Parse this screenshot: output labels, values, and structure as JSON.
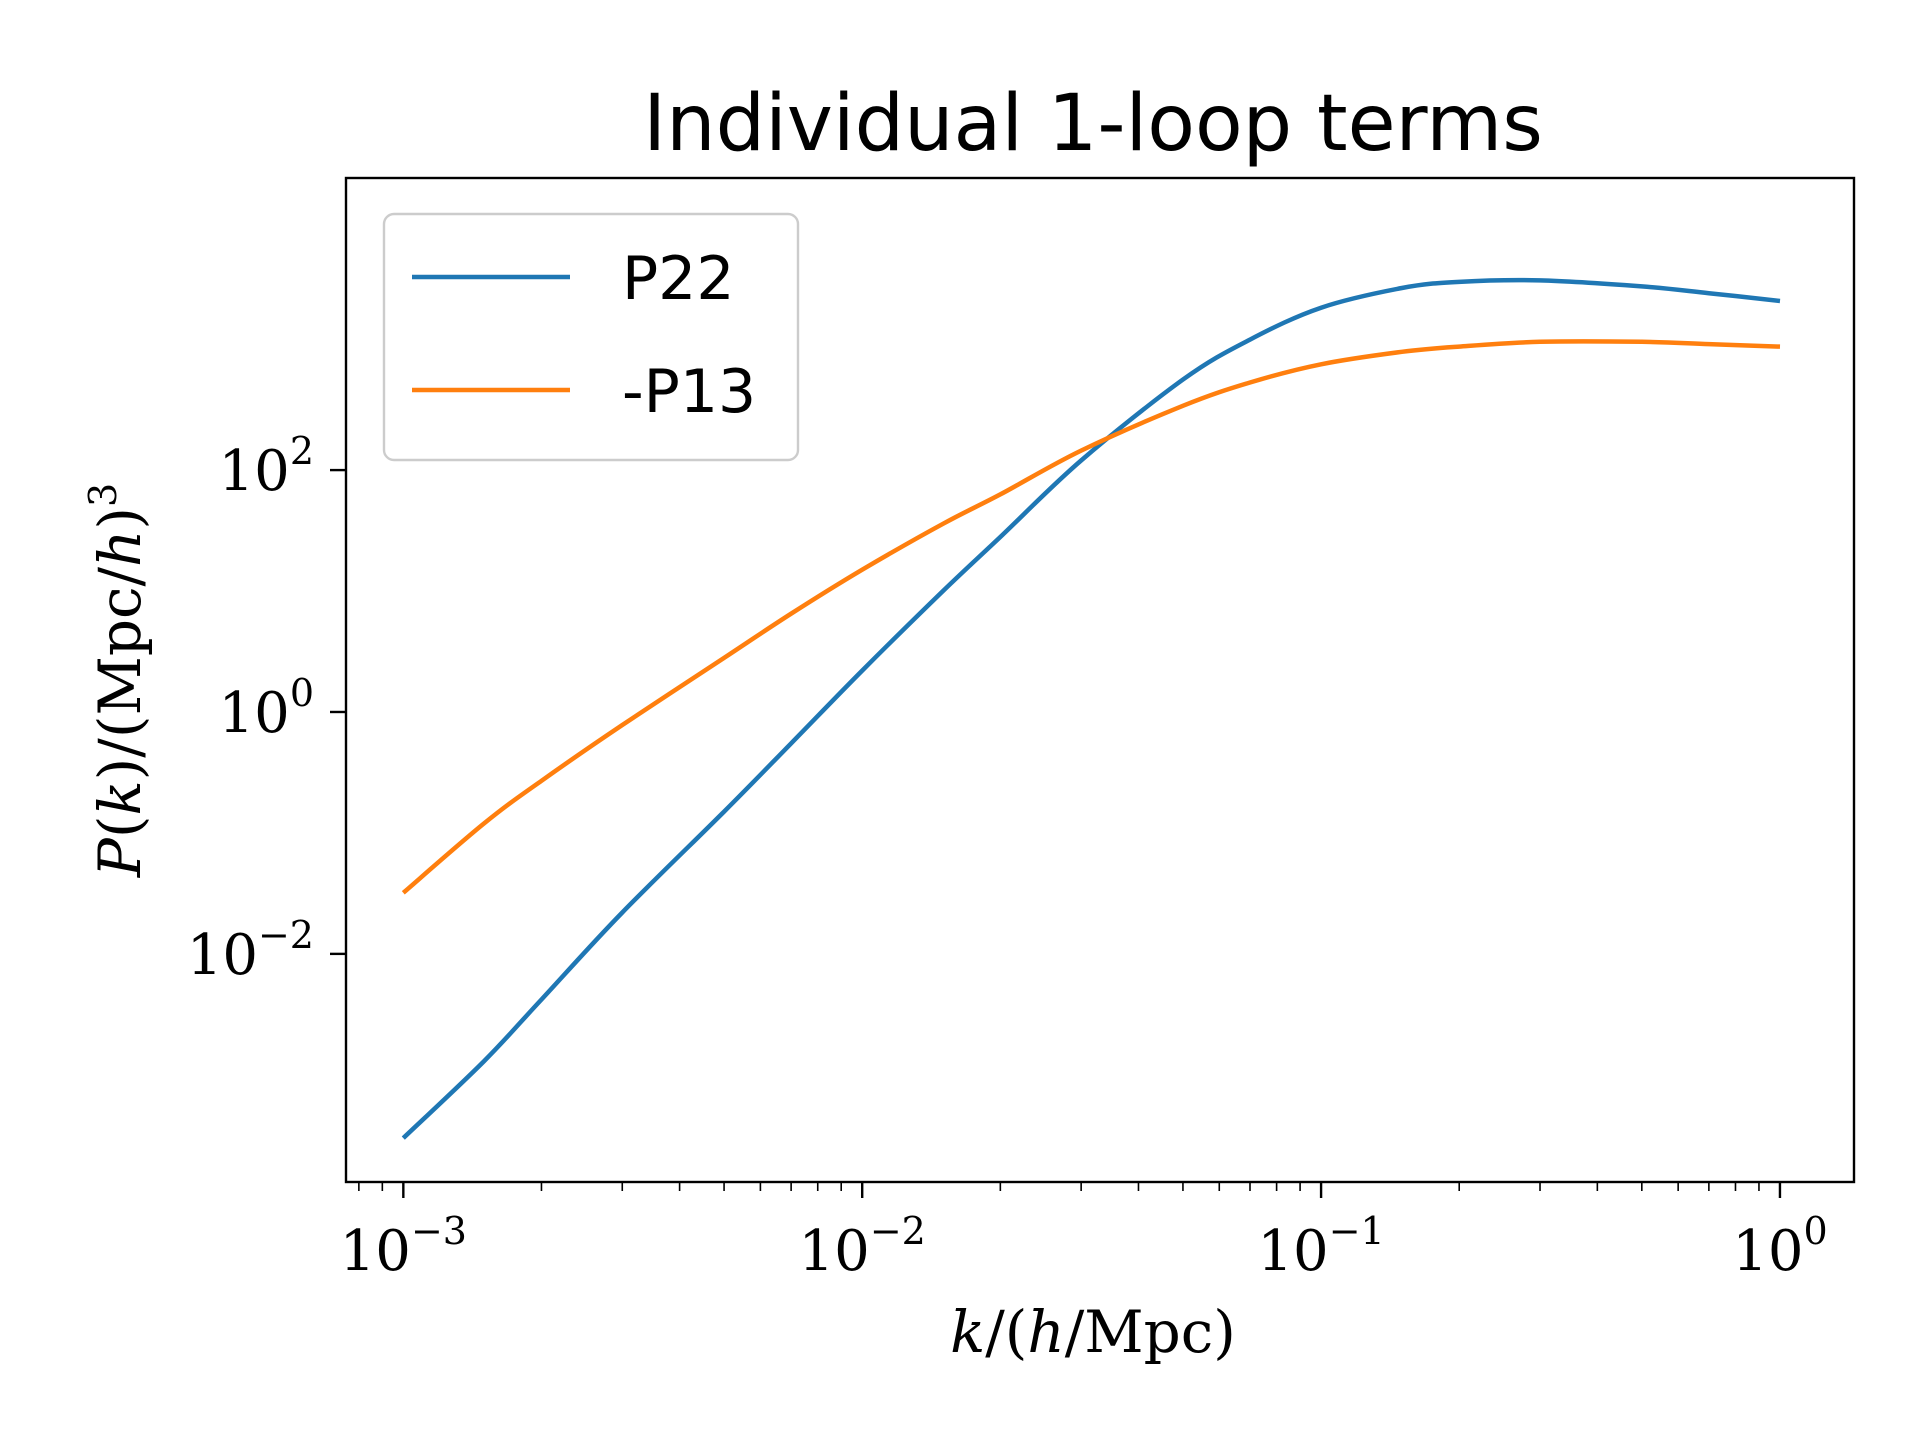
{
  "chart_data": {
    "type": "line",
    "title": "Individual 1-loop terms",
    "xlabel": "k/(h/Mpc)",
    "ylabel": "P(k)/(Mpc/h)^3",
    "xscale": "log",
    "yscale": "log",
    "xlim": [
      0.00075,
      1.45
    ],
    "ylim": [
      0.00013,
      26000
    ],
    "grid": false,
    "legend_position": "upper left",
    "x_ticks": [
      {
        "value": 0.001,
        "base": "10",
        "exp": "−3"
      },
      {
        "value": 0.01,
        "base": "10",
        "exp": "−2"
      },
      {
        "value": 0.1,
        "base": "10",
        "exp": "−1"
      },
      {
        "value": 1,
        "base": "10",
        "exp": "0"
      }
    ],
    "y_ticks": [
      {
        "value": 0.01,
        "base": "10",
        "exp": "−2"
      },
      {
        "value": 1,
        "base": "10",
        "exp": "0"
      },
      {
        "value": 100,
        "base": "10",
        "exp": "2"
      }
    ],
    "series": [
      {
        "name": "P22",
        "color": "#1f77b4",
        "x": [
          0.001,
          0.0015,
          0.002,
          0.003,
          0.005,
          0.007,
          0.01,
          0.015,
          0.02,
          0.03,
          0.05,
          0.07,
          0.1,
          0.15,
          0.2,
          0.3,
          0.5,
          0.7,
          1.0
        ],
        "y": [
          0.0003,
          0.0013,
          0.0042,
          0.022,
          0.15,
          0.55,
          2.2,
          10,
          28,
          120,
          560,
          1200,
          2200,
          3200,
          3600,
          3700,
          3300,
          2900,
          2500
        ]
      },
      {
        "name": "-P13",
        "color": "#ff7f0e",
        "x": [
          0.001,
          0.0015,
          0.002,
          0.003,
          0.005,
          0.007,
          0.01,
          0.015,
          0.02,
          0.03,
          0.05,
          0.07,
          0.1,
          0.15,
          0.2,
          0.3,
          0.5,
          0.7,
          1.0
        ],
        "y": [
          0.032,
          0.12,
          0.27,
          0.78,
          2.8,
          6.5,
          15,
          36,
          63,
          145,
          340,
          530,
          750,
          950,
          1050,
          1150,
          1150,
          1100,
          1050
        ]
      }
    ]
  }
}
